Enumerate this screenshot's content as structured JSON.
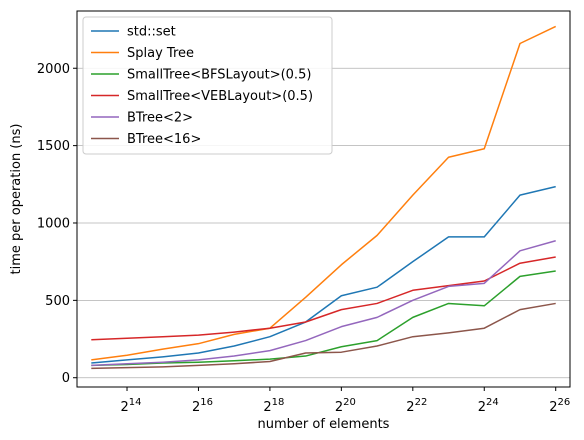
{
  "chart_data": {
    "type": "line",
    "title": "",
    "xlabel": "number of elements",
    "ylabel": "time per operation (ns)",
    "x_scale": "log2",
    "x_exponents": [
      13,
      14,
      15,
      16,
      17,
      18,
      19,
      20,
      21,
      22,
      23,
      24,
      25,
      26
    ],
    "x_tick_exponents": [
      "14",
      "16",
      "18",
      "20",
      "22",
      "24",
      "26"
    ],
    "x_tick_base": "2",
    "xlim_exponent": [
      12.6,
      26.4
    ],
    "ylim": [
      -60,
      2370
    ],
    "y_ticks": [
      0,
      500,
      1000,
      1500,
      2000
    ],
    "y_tick_labels": [
      "0",
      "500",
      "1000",
      "1500",
      "2000"
    ],
    "grid": "horizontal",
    "legend_position": "top-left",
    "series": [
      {
        "name": "std::set",
        "color": "#1f77b4",
        "values": [
          95,
          115,
          135,
          160,
          205,
          265,
          360,
          530,
          585,
          750,
          910,
          910,
          1180,
          1235
        ]
      },
      {
        "name": "Splay Tree",
        "color": "#ff7f0e",
        "values": [
          115,
          145,
          185,
          220,
          280,
          320,
          520,
          730,
          920,
          1180,
          1425,
          1480,
          2160,
          2270
        ]
      },
      {
        "name": "SmallTree<BFSLayout>(0.5)",
        "color": "#2ca02c",
        "values": [
          80,
          85,
          95,
          100,
          110,
          120,
          140,
          200,
          240,
          390,
          480,
          465,
          655,
          690
        ]
      },
      {
        "name": "SmallTree<VEBLayout>(0.5)",
        "color": "#d62728",
        "values": [
          245,
          255,
          265,
          275,
          295,
          320,
          360,
          440,
          480,
          565,
          595,
          625,
          740,
          780
        ]
      },
      {
        "name": "BTree<2>",
        "color": "#9467bd",
        "values": [
          80,
          90,
          100,
          115,
          140,
          175,
          240,
          330,
          390,
          500,
          590,
          610,
          820,
          885
        ]
      },
      {
        "name": "BTree<16>",
        "color": "#8c564b",
        "values": [
          60,
          65,
          70,
          80,
          90,
          105,
          160,
          165,
          205,
          265,
          290,
          320,
          440,
          480
        ]
      }
    ]
  }
}
